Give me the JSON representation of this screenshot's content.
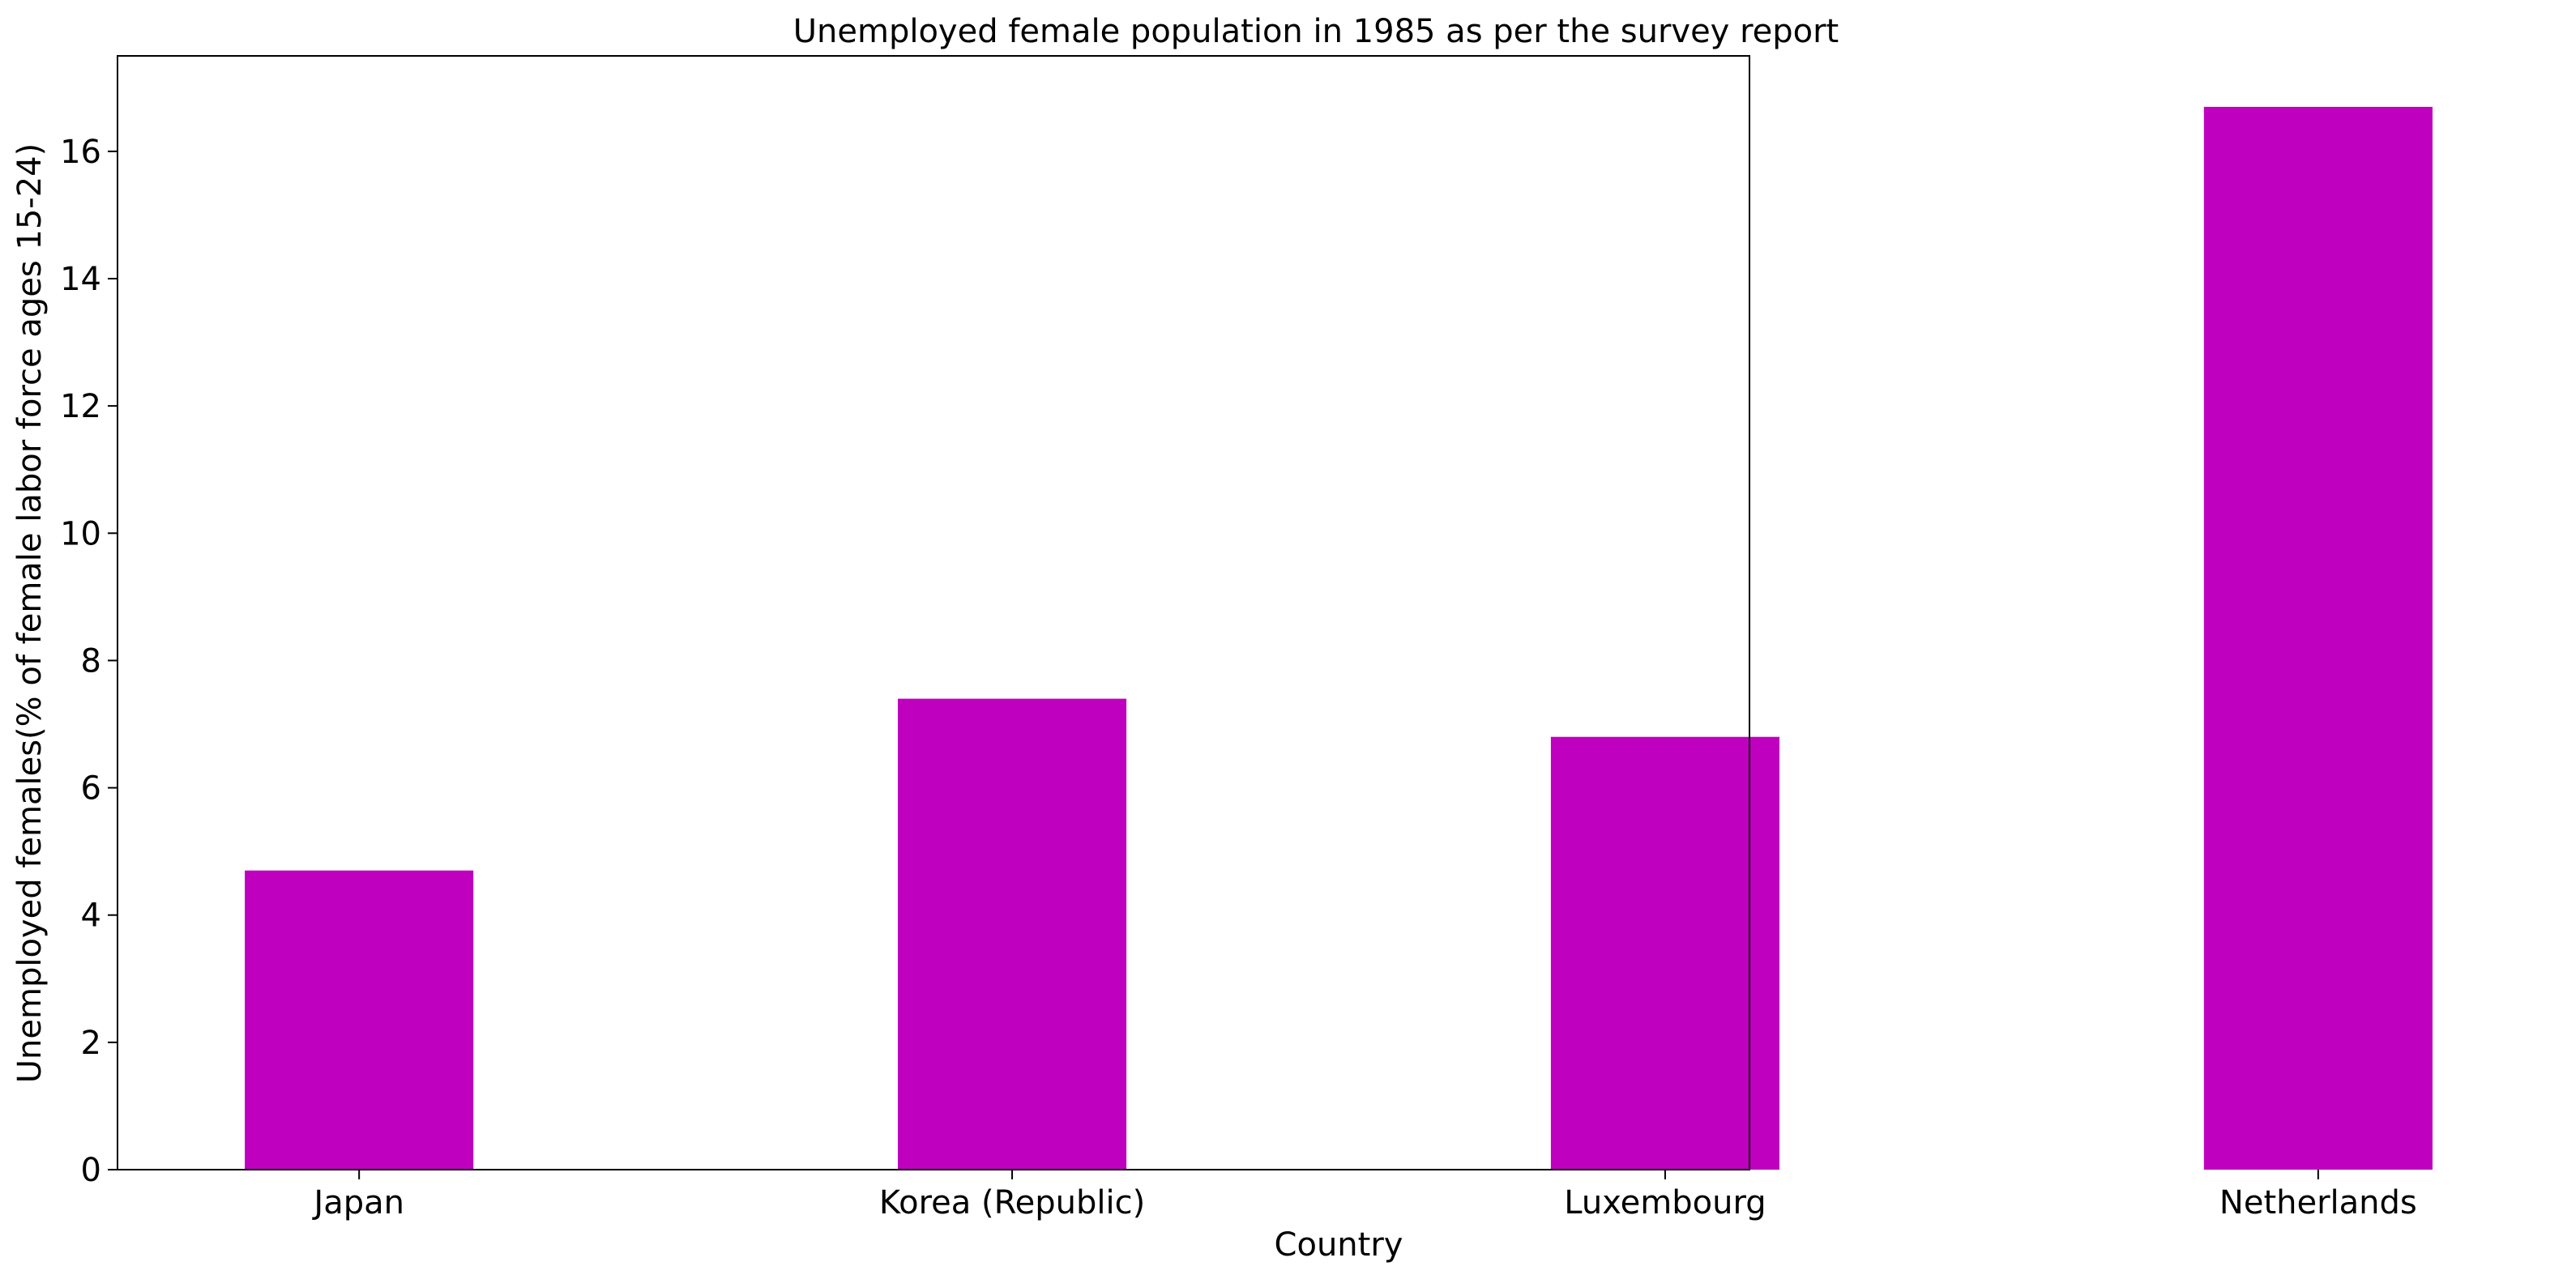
{
  "chart_data": {
    "type": "bar",
    "title": "Unemployed female population in 1985 as per the survey report",
    "xlabel": "Country",
    "ylabel": "Unemployed females(% of female labor force ages 15-24)",
    "categories": [
      "Japan",
      "Korea (Republic)",
      "Luxembourg",
      "Netherlands"
    ],
    "values": [
      4.7,
      7.4,
      6.8,
      16.7
    ],
    "ylim": [
      0,
      17.5
    ],
    "yticks": [
      0,
      2,
      4,
      6,
      8,
      10,
      12,
      14,
      16
    ],
    "bar_color": "#bf00bf",
    "grid": false,
    "legend": "none"
  }
}
